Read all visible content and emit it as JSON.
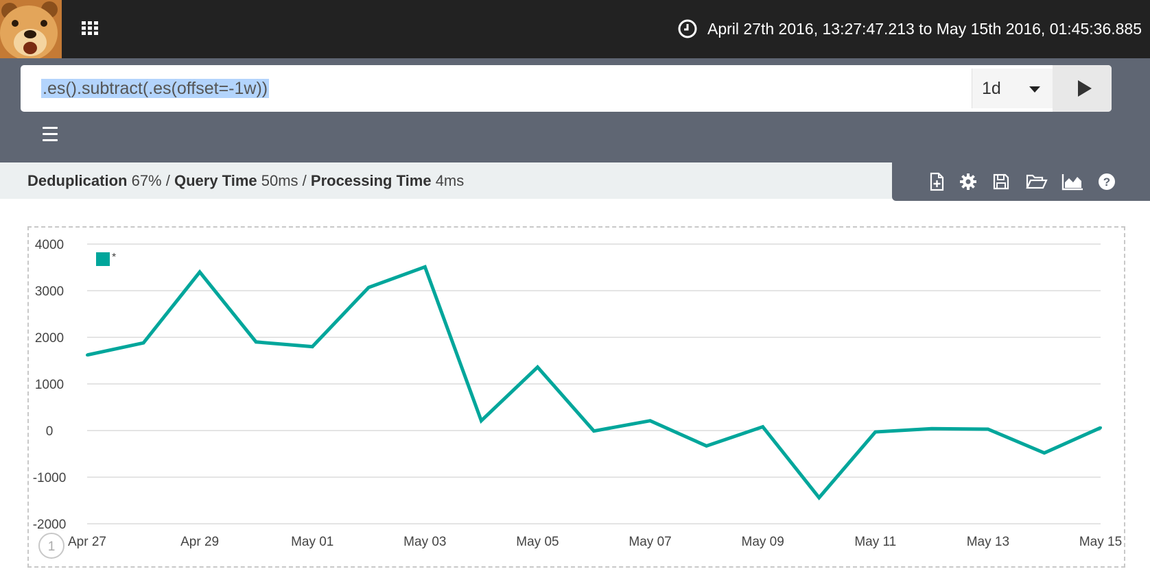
{
  "topbar": {
    "time_range": "April 27th 2016, 13:27:47.213 to May 15th 2016, 01:45:36.885",
    "icons": {
      "apps": "apps-grid-icon",
      "clock": "clock-icon"
    }
  },
  "expression": {
    "value": ".es().subtract(.es(offset=-1w))",
    "interval": "1d",
    "run_icon": "play-icon",
    "menu_icon": "hamburger-menu-icon"
  },
  "stats": {
    "dedup_label": "Deduplication",
    "dedup_value": "67%",
    "sep1": " / ",
    "query_label": "Query Time",
    "query_value": "50ms",
    "sep2": " / ",
    "processing_label": "Processing Time",
    "processing_value": "4ms"
  },
  "toolbar_icons": [
    "new-sheet-icon",
    "gear-icon",
    "save-icon",
    "folder-open-icon",
    "area-chart-icon",
    "help-icon"
  ],
  "chart_badge": "1",
  "colors": {
    "series": "#00a69b",
    "topbar": "#222222",
    "exprbar": "#5f6673",
    "statsbar": "#ecf0f1"
  },
  "chart_data": {
    "type": "line",
    "x": [
      "Apr 27",
      "Apr 28",
      "Apr 29",
      "Apr 30",
      "May 01",
      "May 02",
      "May 03",
      "May 04",
      "May 05",
      "May 06",
      "May 07",
      "May 08",
      "May 09",
      "May 10",
      "May 11",
      "May 12",
      "May 13",
      "May 14",
      "May 15"
    ],
    "xticks": [
      "Apr 27",
      "Apr 29",
      "May 01",
      "May 03",
      "May 05",
      "May 07",
      "May 09",
      "May 11",
      "May 13",
      "May 15"
    ],
    "series": [
      {
        "name": "*",
        "values": [
          1620,
          1880,
          3400,
          1900,
          1800,
          3070,
          3510,
          210,
          1360,
          -10,
          210,
          -330,
          80,
          -1440,
          -30,
          40,
          30,
          -480,
          60
        ]
      }
    ],
    "yticks": [
      4000,
      3000,
      2000,
      1000,
      0,
      -1000,
      -2000
    ],
    "ylim": [
      -2000,
      4000
    ],
    "grid": true,
    "legend": "top-left"
  }
}
